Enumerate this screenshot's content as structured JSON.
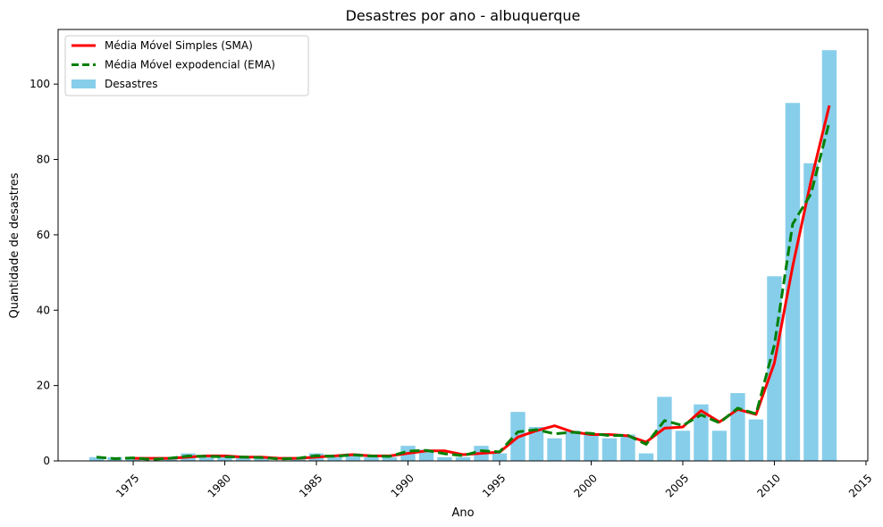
{
  "chart_data": {
    "type": "bar",
    "title": "Desastres por ano - albuquerque",
    "xlabel": "Ano",
    "ylabel": "Quantidade de desastres",
    "xlim": [
      1970.9,
      2015.1
    ],
    "ylim": [
      0,
      114.5
    ],
    "xticks": [
      1975,
      1980,
      1985,
      1990,
      1995,
      2000,
      2005,
      2010,
      2015
    ],
    "yticks": [
      0,
      20,
      40,
      60,
      80,
      100
    ],
    "grid": false,
    "legend_position": "top-left",
    "colors": {
      "bars": "#87ceeb",
      "sma": "#ff0000",
      "ema": "#008000"
    },
    "legend": [
      {
        "label": "Média Móvel Simples (SMA)",
        "kind": "sma"
      },
      {
        "label": "Média Móvel expodencial (EMA)",
        "kind": "ema"
      },
      {
        "label": "Desastres",
        "kind": "bar"
      }
    ],
    "bars": {
      "name": "Desastres",
      "x": [
        1973,
        1974,
        1975,
        1976,
        1977,
        1978,
        1979,
        1980,
        1981,
        1982,
        1983,
        1984,
        1985,
        1986,
        1987,
        1988,
        1989,
        1990,
        1991,
        1992,
        1993,
        1994,
        1995,
        1996,
        1997,
        1998,
        1999,
        2000,
        2001,
        2002,
        2003,
        2004,
        2005,
        2006,
        2007,
        2008,
        2009,
        2010,
        2011,
        2012,
        2013
      ],
      "values": [
        1,
        1,
        1,
        0,
        1,
        2,
        1,
        1,
        1,
        1,
        0,
        1,
        2,
        1,
        2,
        1,
        1,
        4,
        3,
        1,
        1,
        4,
        2,
        13,
        9,
        6,
        8,
        7,
        6,
        7,
        2,
        17,
        8,
        15,
        8,
        18,
        11,
        49,
        95,
        79,
        109
      ]
    },
    "sma": {
      "name": "Média Móvel Simples (SMA)",
      "x": [
        1975,
        1976,
        1977,
        1978,
        1979,
        1980,
        1981,
        1982,
        1983,
        1984,
        1985,
        1986,
        1987,
        1988,
        1989,
        1990,
        1991,
        1992,
        1993,
        1994,
        1995,
        1996,
        1997,
        1998,
        1999,
        2000,
        2001,
        2002,
        2003,
        2004,
        2005,
        2006,
        2007,
        2008,
        2009,
        2010,
        2011,
        2012,
        2013
      ],
      "values": [
        0.67,
        0.67,
        0.67,
        1.0,
        1.33,
        1.33,
        1.0,
        1.0,
        0.67,
        0.67,
        1.0,
        1.33,
        1.67,
        1.33,
        1.33,
        2.0,
        2.67,
        2.67,
        1.67,
        2.0,
        2.33,
        6.33,
        8.0,
        9.33,
        7.67,
        7.0,
        7.0,
        6.67,
        5.0,
        8.67,
        9.0,
        13.33,
        10.33,
        13.67,
        12.33,
        26.0,
        51.67,
        74.33,
        94.33
      ]
    },
    "ema": {
      "name": "Média Móvel expodencial (EMA)",
      "x": [
        1973,
        1974,
        1975,
        1976,
        1977,
        1978,
        1979,
        1980,
        1981,
        1982,
        1983,
        1984,
        1985,
        1986,
        1987,
        1988,
        1989,
        1990,
        1991,
        1992,
        1993,
        1994,
        1995,
        1996,
        1997,
        1998,
        1999,
        2000,
        2001,
        2002,
        2003,
        2004,
        2005,
        2006,
        2007,
        2008,
        2009,
        2010,
        2011,
        2012,
        2013
      ],
      "values": [
        1.0,
        0.6,
        0.8,
        0.4,
        0.7,
        1.3,
        1.2,
        1.1,
        1.0,
        0.9,
        0.5,
        0.7,
        1.4,
        1.2,
        1.6,
        1.3,
        1.2,
        2.6,
        2.8,
        1.9,
        1.4,
        2.7,
        2.4,
        7.7,
        8.3,
        7.2,
        7.6,
        7.3,
        6.7,
        6.8,
        4.4,
        10.7,
        9.4,
        12.2,
        10.1,
        14.0,
        12.5,
        30.8,
        62.9,
        70.9,
        90.0
      ]
    }
  }
}
